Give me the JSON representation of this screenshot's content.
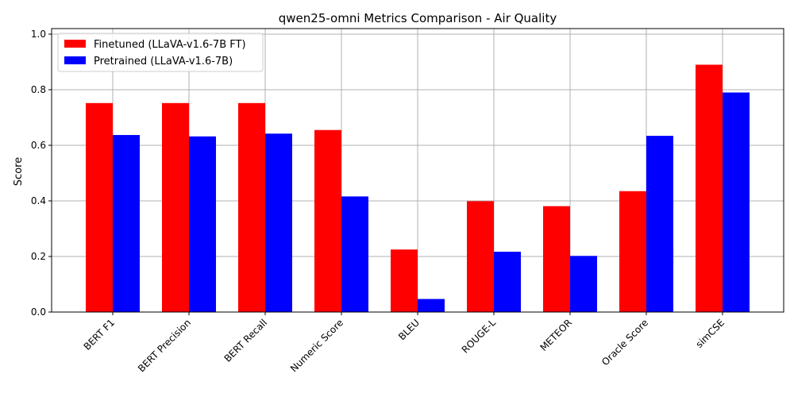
{
  "chart_data": {
    "type": "bar",
    "title": "qwen25-omni Metrics Comparison - Air Quality",
    "xlabel": "",
    "ylabel": "Score",
    "ylim": [
      0,
      1.02
    ],
    "yticks": [
      "0.0",
      "0.2",
      "0.4",
      "0.6",
      "0.8",
      "1.0"
    ],
    "grid": true,
    "legend_position": "top-left",
    "categories": [
      "BERT F1",
      "BERT Precision",
      "BERT Recall",
      "Numeric Score",
      "BLEU",
      "ROUGE-L",
      "METEOR",
      "Oracle Score",
      "simCSE"
    ],
    "series": [
      {
        "name": "Finetuned (LLaVA-v1.6-7B FT)",
        "color": "#ff0000",
        "values": [
          0.752,
          0.752,
          0.752,
          0.655,
          0.225,
          0.399,
          0.381,
          0.435,
          0.89
        ]
      },
      {
        "name": "Pretrained (LLaVA-v1.6-7B)",
        "color": "#0000ff",
        "values": [
          0.637,
          0.632,
          0.642,
          0.416,
          0.047,
          0.217,
          0.202,
          0.634,
          0.79
        ]
      }
    ]
  }
}
